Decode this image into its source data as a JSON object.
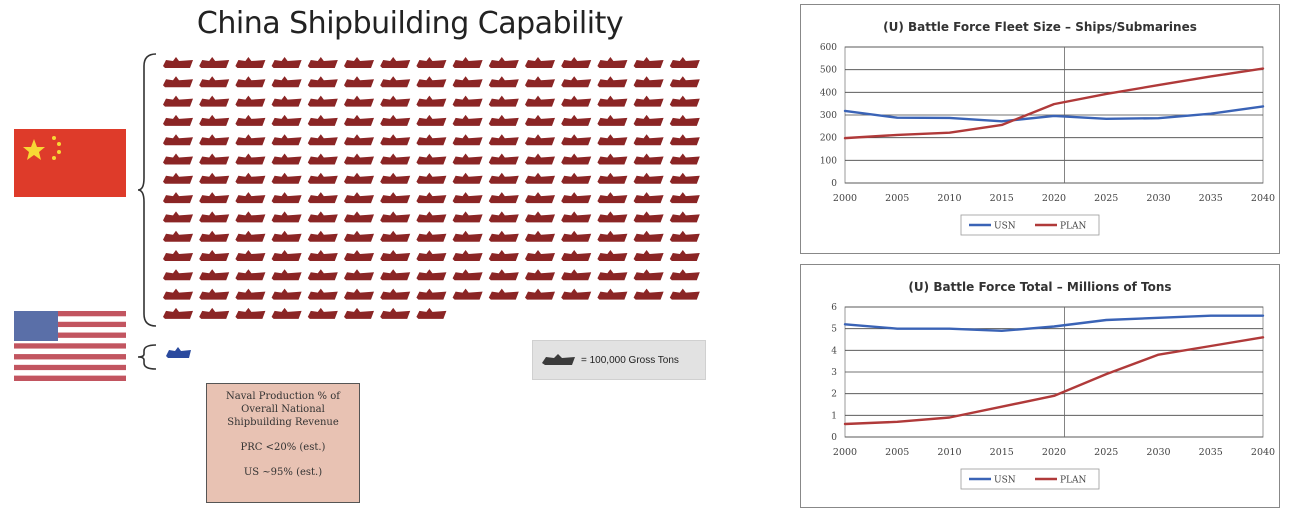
{
  "slide": {
    "title": "China Shipbuilding Capability",
    "legend_label": "= 100,000 Gross Tons",
    "info_box": {
      "line1": "Naval Production % of",
      "line2": "Overall National",
      "line3": "Shipbuilding Revenue",
      "prc": "PRC <20% (est.)",
      "us": "US ~95% (est.)"
    },
    "pictogram": {
      "china_ship_count": 203,
      "us_ship_count": 1,
      "ship_color": "#8b2525",
      "us_ship_color": "#2a4a9e"
    }
  },
  "chart_data": [
    {
      "type": "line",
      "title": "(U) Battle Force Fleet Size – Ships/Submarines",
      "x": [
        2000,
        2005,
        2010,
        2015,
        2020,
        2025,
        2030,
        2035,
        2040
      ],
      "x_tick_labels": [
        "2000",
        "2005",
        "2010",
        "2015",
        "2020",
        "2025",
        "2030",
        "2035",
        "2040"
      ],
      "ylim": [
        0,
        600
      ],
      "y_ticks": [
        0,
        100,
        200,
        300,
        400,
        500,
        600
      ],
      "y_tick_labels": [
        "0",
        "100",
        "200",
        "300",
        "400",
        "500",
        "600"
      ],
      "grid": true,
      "legend_position": "bottom",
      "divider_x": 2021,
      "series": [
        {
          "name": "USN",
          "color": "#3a63b6",
          "values": [
            318,
            288,
            287,
            272,
            296,
            283,
            286,
            306,
            338
          ]
        },
        {
          "name": "PLAN",
          "color": "#b03a3a",
          "values": [
            198,
            212,
            222,
            256,
            348,
            393,
            432,
            470,
            505
          ]
        }
      ]
    },
    {
      "type": "line",
      "title": "(U) Battle Force Total – Millions of Tons",
      "x": [
        2000,
        2005,
        2010,
        2015,
        2020,
        2025,
        2030,
        2035,
        2040
      ],
      "x_tick_labels": [
        "2000",
        "2005",
        "2010",
        "2015",
        "2020",
        "2025",
        "2030",
        "2035",
        "2040"
      ],
      "ylim": [
        0,
        6
      ],
      "y_ticks": [
        0,
        1,
        2,
        3,
        4,
        5,
        6
      ],
      "y_tick_labels": [
        "0",
        "1",
        "2",
        "3",
        "4",
        "5",
        "6"
      ],
      "grid": true,
      "legend_position": "bottom",
      "divider_x": 2021,
      "series": [
        {
          "name": "USN",
          "color": "#3a63b6",
          "values": [
            5.2,
            5.0,
            5.0,
            4.9,
            5.1,
            5.4,
            5.5,
            5.6,
            5.6
          ]
        },
        {
          "name": "PLAN",
          "color": "#b03a3a",
          "values": [
            0.6,
            0.7,
            0.9,
            1.4,
            1.9,
            2.9,
            3.8,
            4.2,
            4.6
          ]
        }
      ]
    }
  ]
}
